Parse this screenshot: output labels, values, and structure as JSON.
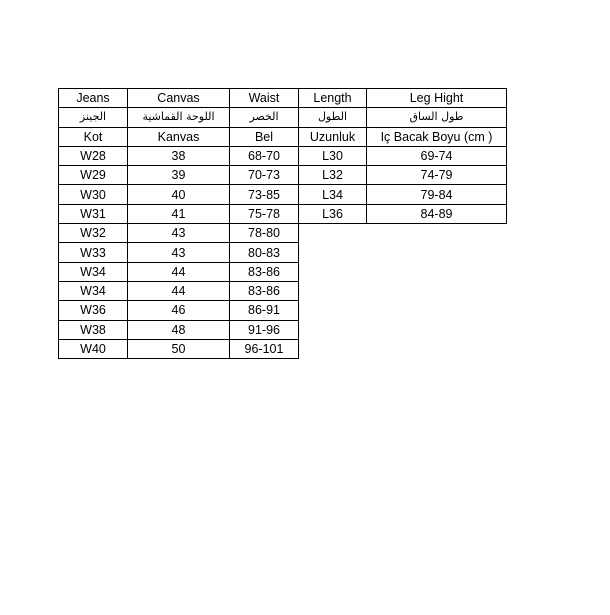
{
  "headers": {
    "english": [
      "Jeans",
      "Canvas",
      "Waist",
      "Length",
      "Leg Hight"
    ],
    "arabic": [
      "الجينز",
      "اللوحة القماشية",
      "الخصر",
      "الطول",
      "طول الساق"
    ],
    "turkish": [
      "Kot",
      "Kanvas",
      "Bel",
      "Uzunluk",
      "Iç Bacak Boyu (cm )"
    ]
  },
  "rows": [
    [
      "W28",
      "38",
      "68-70",
      "L30",
      "69-74"
    ],
    [
      "W29",
      "39",
      "70-73",
      "L32",
      "74-79"
    ],
    [
      "W30",
      "40",
      "73-85",
      "L34",
      "79-84"
    ],
    [
      "W31",
      "41",
      "75-78",
      "L36",
      "84-89"
    ],
    [
      "W32",
      "43",
      "78-80"
    ],
    [
      "W33",
      "43",
      "80-83"
    ],
    [
      "W34",
      "44",
      "83-86"
    ],
    [
      "W34",
      "44",
      "83-86"
    ],
    [
      "W36",
      "46",
      "86-91"
    ],
    [
      "W38",
      "48",
      "91-96"
    ],
    [
      "W40",
      "50",
      "96-101"
    ]
  ]
}
